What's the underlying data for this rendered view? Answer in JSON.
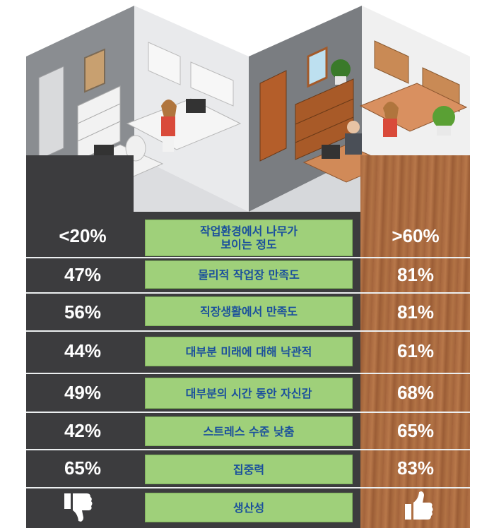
{
  "rows": [
    {
      "label": "작업환경에서 나무가\n보이는 정도",
      "left": "<20%",
      "right": ">60%"
    },
    {
      "label": "물리적 작업장 만족도",
      "left": "47%",
      "right": "81%"
    },
    {
      "label": "직장생활에서 만족도",
      "left": "56%",
      "right": "81%"
    },
    {
      "label": "대부분 미래에 대해 낙관적",
      "left": "44%",
      "right": "61%"
    },
    {
      "label": "대부분의 시간 동안 자신감",
      "left": "49%",
      "right": "68%"
    },
    {
      "label": "스트레스 수준 낮춤",
      "left": "42%",
      "right": "65%"
    },
    {
      "label": "집중력",
      "left": "65%",
      "right": "83%"
    },
    {
      "label": "생산성"
    }
  ],
  "icons": {
    "left": "thumbs-down-icon",
    "right": "thumbs-up-icon"
  },
  "colors": {
    "label_bg": "#9fd07a",
    "label_text": "#1a4f9c",
    "dark_panel": "#3c3c3e",
    "wood_panel": "#a8683f"
  }
}
